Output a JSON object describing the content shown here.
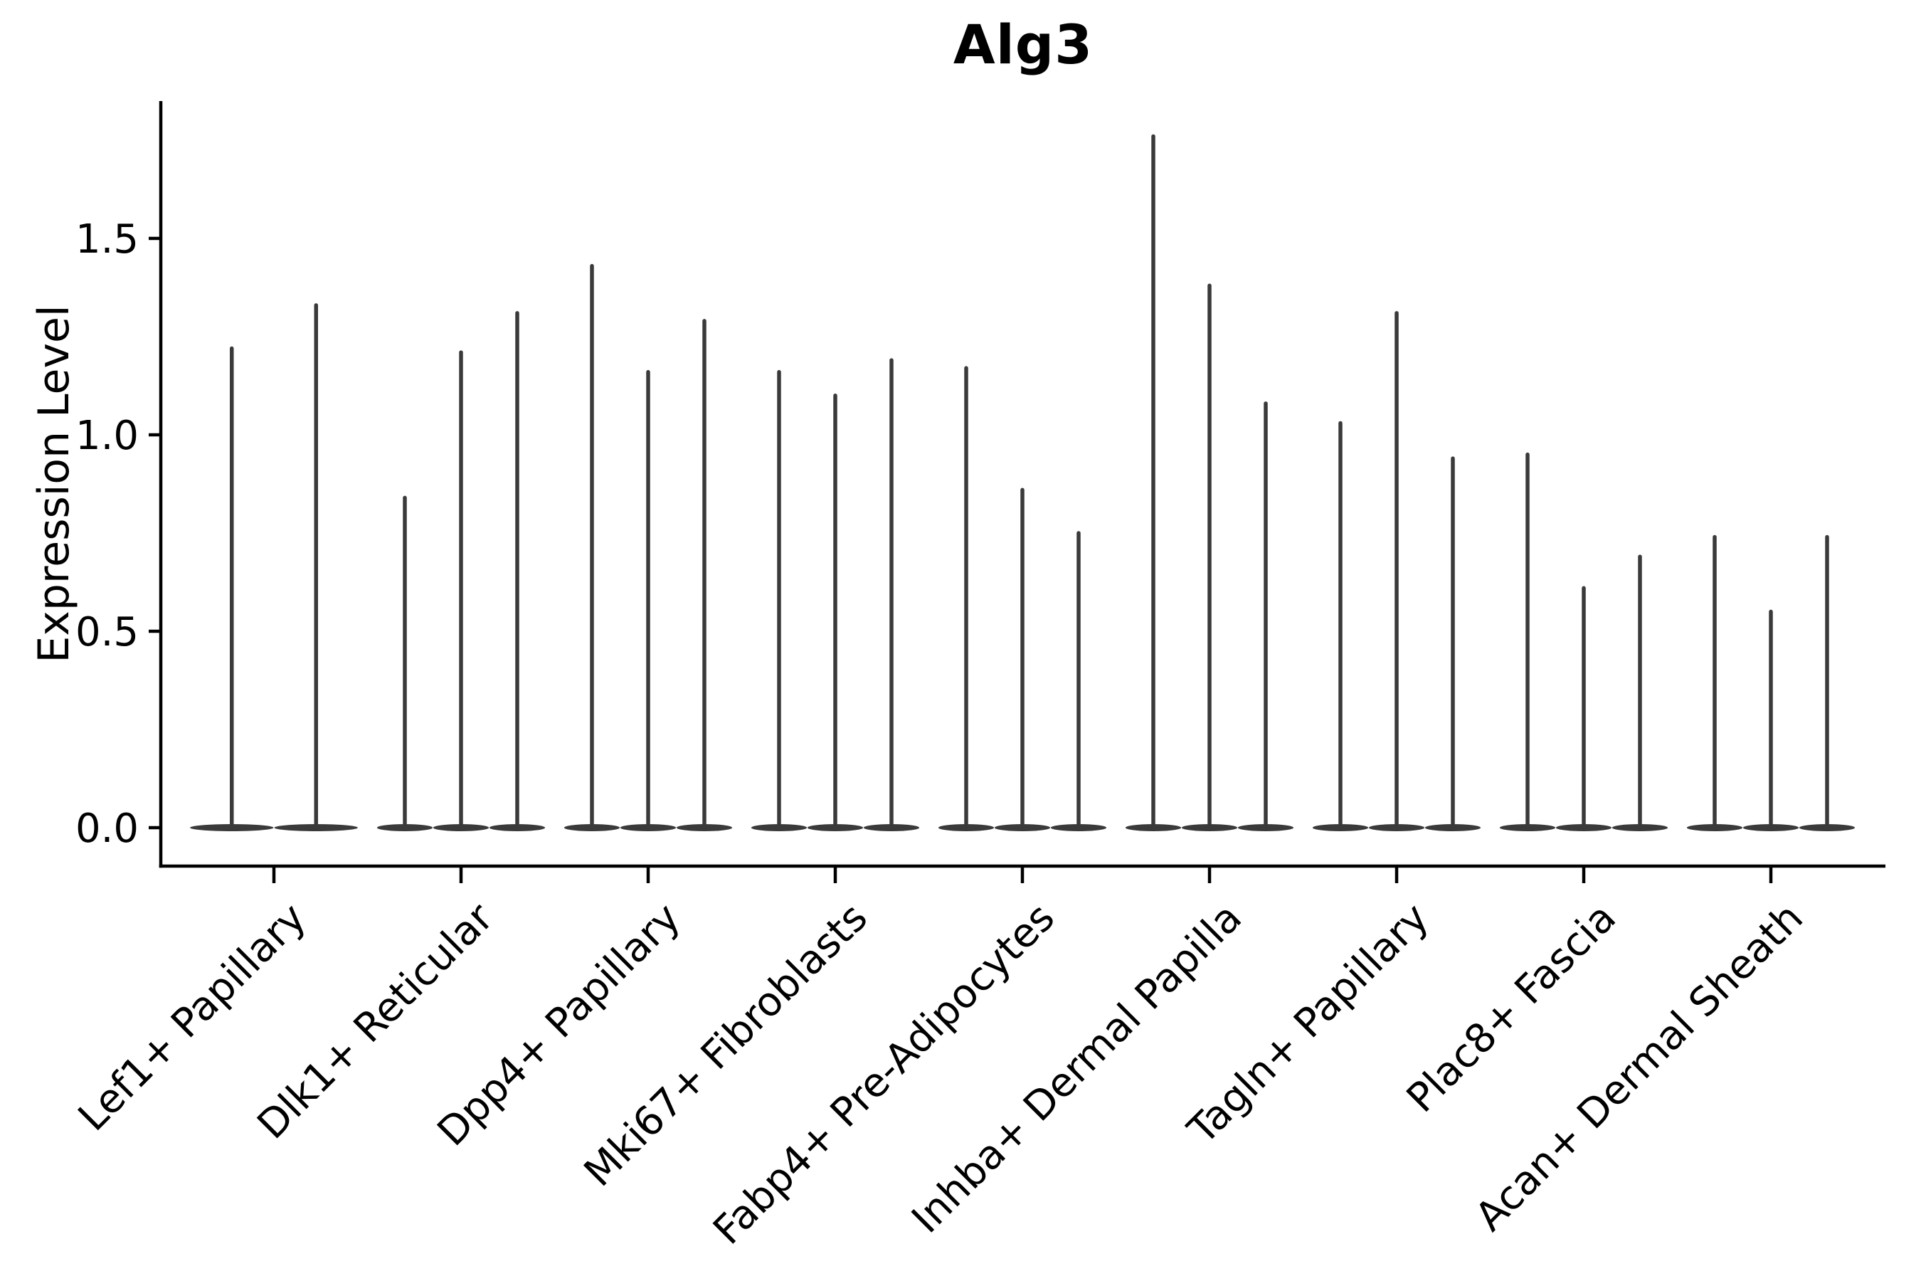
{
  "chart_data": {
    "type": "violin",
    "title": "Alg3",
    "ylabel": "Expression Level",
    "xlabel": "",
    "ylim": [
      0,
      1.85
    ],
    "yticks": [
      0.0,
      0.5,
      1.0,
      1.5
    ],
    "ytick_labels": [
      "0.0",
      "0.5",
      "1.0",
      "1.5"
    ],
    "legend": "none",
    "grid": false,
    "description": "Violin plot of Alg3 expression per fibroblast cell type; each category shows 2-3 extremely thin split violins (density concentrated at 0 with a narrow spike up to the max expressing cell).",
    "categories": [
      "Lef1+ Papillary",
      "Dlk1+ Reticular",
      "Dpp4+ Papillary",
      "Mki67+ Fibroblasts",
      "Fabp4+ Pre-Adipocytes",
      "Inhba+ Dermal Papilla",
      "Tagln+ Papillary",
      "Plac8+ Fascia",
      "Acan+ Dermal Sheath"
    ],
    "groups": [
      {
        "label": "Lef1+ Papillary",
        "spike_maxima": [
          1.22,
          1.33
        ]
      },
      {
        "label": "Dlk1+ Reticular",
        "spike_maxima": [
          0.84,
          1.21,
          1.31
        ]
      },
      {
        "label": "Dpp4+ Papillary",
        "spike_maxima": [
          1.43,
          1.16,
          1.29
        ]
      },
      {
        "label": "Mki67+ Fibroblasts",
        "spike_maxima": [
          1.16,
          1.1,
          1.19
        ]
      },
      {
        "label": "Fabp4+ Pre-Adipocytes",
        "spike_maxima": [
          1.17,
          0.86,
          0.75
        ]
      },
      {
        "label": "Inhba+ Dermal Papilla",
        "spike_maxima": [
          1.76,
          1.38,
          1.08
        ]
      },
      {
        "label": "Tagln+ Papillary",
        "spike_maxima": [
          1.03,
          1.31,
          0.94
        ]
      },
      {
        "label": "Plac8+ Fascia",
        "spike_maxima": [
          0.95,
          0.61,
          0.69
        ]
      },
      {
        "label": "Acan+ Dermal Sheath",
        "spike_maxima": [
          0.74,
          0.55,
          0.74
        ]
      }
    ],
    "colors": {
      "violin": "#3a3a3a",
      "axis": "#000000",
      "text": "#000000",
      "background": "#ffffff"
    }
  }
}
